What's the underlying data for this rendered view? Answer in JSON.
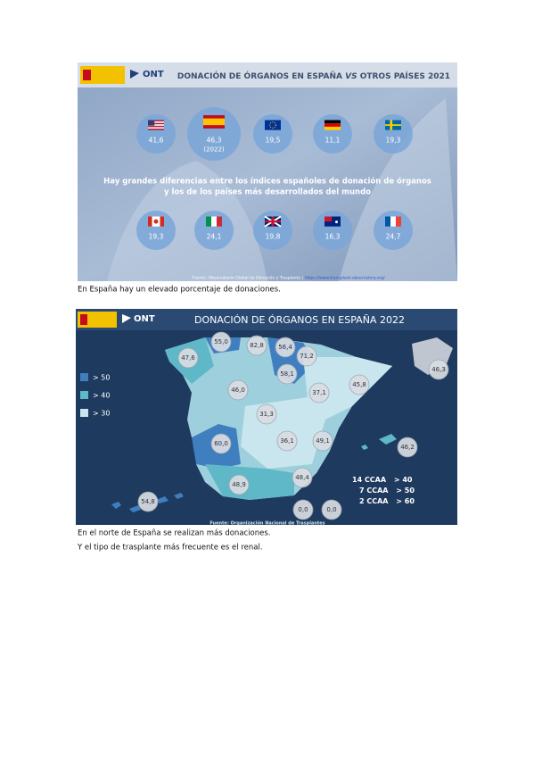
{
  "infographic_1": {
    "logo": "ONT",
    "title_prefix": "DONACIÓN DE ÓRGANOS EN ESPAÑA",
    "title_em": "VS",
    "title_suffix": "OTROS PAÍSES 2021",
    "countries": [
      {
        "value": "41,6"
      },
      {
        "value": "46,3",
        "note": "(2022)"
      },
      {
        "value": "19,5"
      },
      {
        "value": "11,1"
      },
      {
        "value": "19,3"
      },
      {
        "value": "19,3"
      },
      {
        "value": "24,1"
      },
      {
        "value": "19,8"
      },
      {
        "value": "16,3"
      },
      {
        "value": "24,7"
      }
    ],
    "message": [
      "Hay grandes diferencias entre los índices españoles de donación de órganos",
      "y los de los países más desarrollados del mundo"
    ],
    "source": "Fuente: Observatorio Global de Donación y Trasplante |",
    "source_url": "https://www.transplant-observatory.org/"
  },
  "infographic_2": {
    "logo": "ONT",
    "title": "DONACIÓN DE ÓRGANOS EN ESPAÑA 2022",
    "legend": [
      "> 50",
      "> 40",
      "> 30"
    ],
    "regions": [
      "55,0",
      "82,8",
      "56,4",
      "47,6",
      "71,2",
      "58,1",
      "46,0",
      "37,1",
      "45,8",
      "31,3",
      "36,1",
      "49,1",
      "60,0",
      "46,2",
      "48,9",
      "48,4",
      "54,8",
      "0,0",
      "0,0",
      "46,3"
    ],
    "summary": [
      [
        "14",
        "CCAA",
        "> 40"
      ],
      [
        "7",
        "CCAA",
        "> 50"
      ],
      [
        "2",
        "CCAA",
        "> 60"
      ]
    ],
    "source": "Fuente: Organización Nacional de Trasplantes"
  },
  "captions": [
    "En España hay un elevado porcentaje de donaciones.",
    "En el norte de España se realizan más donaciones.",
    "Y el tipo de trasplante más frecuente es el renal."
  ]
}
